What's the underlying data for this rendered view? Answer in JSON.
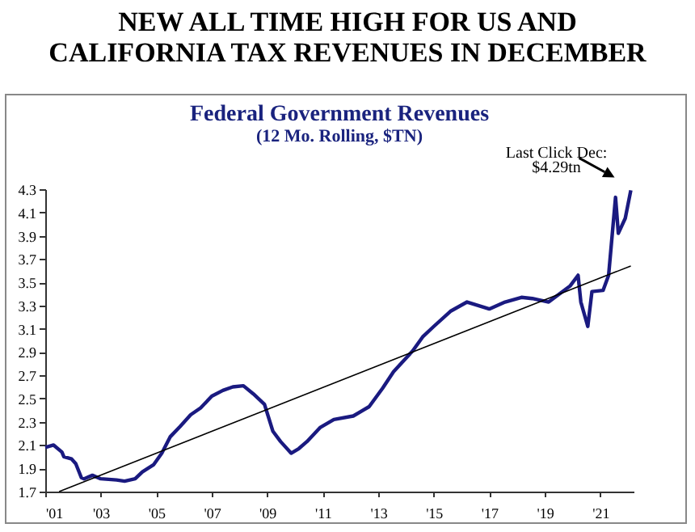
{
  "chart_data": {
    "type": "line",
    "title": "Federal Government Revenues",
    "subtitle": "(12 Mo. Rolling, $TN)",
    "annotations": [
      "NEW ALL TIME HIGH FOR US AND CALIFORNIA TAX REVENUES IN DECEMBER",
      {
        "text": "Last Click Dec:\n$4.29tn",
        "x": 2022.1,
        "y": 4.29
      }
    ],
    "xlim": [
      2001,
      2022.2
    ],
    "ylim": [
      1.7,
      4.3
    ],
    "xticks": [
      {
        "value": 2001,
        "label": "'01"
      },
      {
        "value": 2003,
        "label": "'03"
      },
      {
        "value": 2005,
        "label": "'05"
      },
      {
        "value": 2007,
        "label": "'07"
      },
      {
        "value": 2009,
        "label": "'09"
      },
      {
        "value": 2011,
        "label": "'11"
      },
      {
        "value": 2013,
        "label": "'13"
      },
      {
        "value": 2015,
        "label": "'15"
      },
      {
        "value": 2017,
        "label": "'17"
      },
      {
        "value": 2019,
        "label": "'19"
      },
      {
        "value": 2021,
        "label": "'21"
      }
    ],
    "yticks": [
      1.7,
      1.9,
      2.1,
      2.3,
      2.5,
      2.7,
      2.9,
      3.1,
      3.3,
      3.5,
      3.7,
      3.9,
      4.1,
      4.3
    ],
    "grid": false,
    "legend": false,
    "marker": "none",
    "series": [
      {
        "color": "#1a1a80",
        "x": [
          2001.0,
          2001.3,
          2001.6,
          2001.67,
          2001.95,
          2002.1,
          2002.3,
          2002.4,
          2002.7,
          2003.0,
          2003.57,
          2003.86,
          2004.24,
          2004.5,
          2004.9,
          2005.2,
          2005.5,
          2005.86,
          2006.24,
          2006.6,
          2007.0,
          2007.4,
          2007.76,
          2008.14,
          2008.5,
          2008.9,
          2009.2,
          2009.48,
          2009.86,
          2010.14,
          2010.43,
          2010.9,
          2011.4,
          2012.1,
          2012.67,
          2013.16,
          2013.55,
          2014.24,
          2014.6,
          2015.0,
          2015.6,
          2016.2,
          2016.6,
          2017.0,
          2017.57,
          2018.16,
          2018.55,
          2019.14,
          2019.53,
          2019.92,
          2020.2,
          2020.3,
          2020.55,
          2020.7,
          2021.1,
          2021.3,
          2021.55,
          2021.65,
          2021.9,
          2022.1
        ],
        "values": [
          2.08,
          2.1,
          2.04,
          2.0,
          1.98,
          1.94,
          1.82,
          1.81,
          1.84,
          1.81,
          1.8,
          1.79,
          1.81,
          1.87,
          1.93,
          2.03,
          2.17,
          2.26,
          2.36,
          2.42,
          2.52,
          2.57,
          2.6,
          2.61,
          2.54,
          2.45,
          2.22,
          2.13,
          2.03,
          2.07,
          2.13,
          2.25,
          2.32,
          2.35,
          2.43,
          2.59,
          2.73,
          2.91,
          3.03,
          3.12,
          3.25,
          3.33,
          3.3,
          3.27,
          3.33,
          3.37,
          3.36,
          3.33,
          3.4,
          3.47,
          3.56,
          3.33,
          3.12,
          3.42,
          3.43,
          3.56,
          4.23,
          3.92,
          4.05,
          4.29
        ]
      },
      {
        "type": "line",
        "color": "#000000",
        "x": [
          2001.5,
          2022.1
        ],
        "values": [
          1.7,
          3.64
        ]
      }
    ]
  }
}
